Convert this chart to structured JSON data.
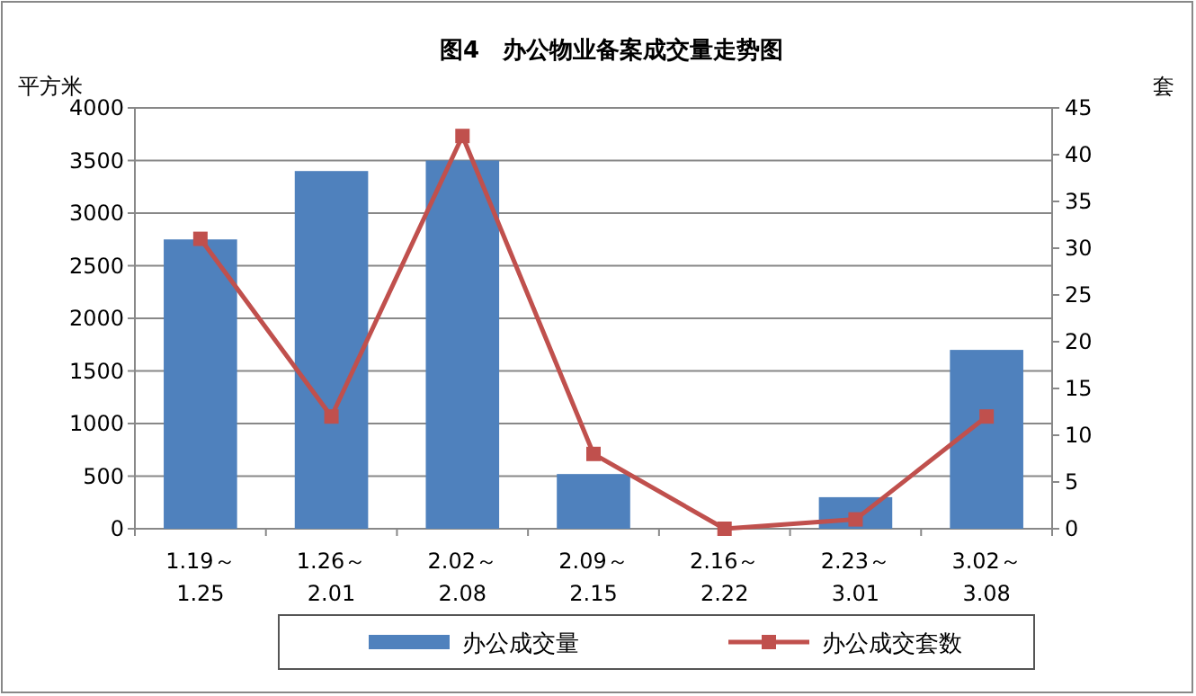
{
  "chart_data": {
    "type": "bar",
    "title": "图4　办公物业备案成交量走势图",
    "ylabel": "平方米",
    "y2label": "套",
    "categories": [
      "1.19～1.25",
      "1.26～2.01",
      "2.02～2.08",
      "2.09～2.15",
      "2.16～2.22",
      "2.23～3.01",
      "3.02～3.08"
    ],
    "series": [
      {
        "name": "办公成交量",
        "color": "#4f81bd",
        "values": [
          2750,
          3400,
          3500,
          520,
          0,
          300,
          1700
        ]
      },
      {
        "name": "办公成交套数",
        "type": "line",
        "axis": "y2",
        "color": "#c0504d",
        "marker": "square",
        "values": [
          31,
          12,
          42,
          8,
          0,
          1,
          12
        ]
      }
    ],
    "ylim": [
      0,
      4000
    ],
    "yticks": [
      0,
      500,
      1000,
      1500,
      2000,
      2500,
      3000,
      3500,
      4000
    ],
    "y2lim": [
      0,
      45
    ],
    "y2ticks": [
      0,
      5,
      10,
      15,
      20,
      25,
      30,
      35,
      40,
      45
    ],
    "grid": "y",
    "legend": "bottom"
  }
}
